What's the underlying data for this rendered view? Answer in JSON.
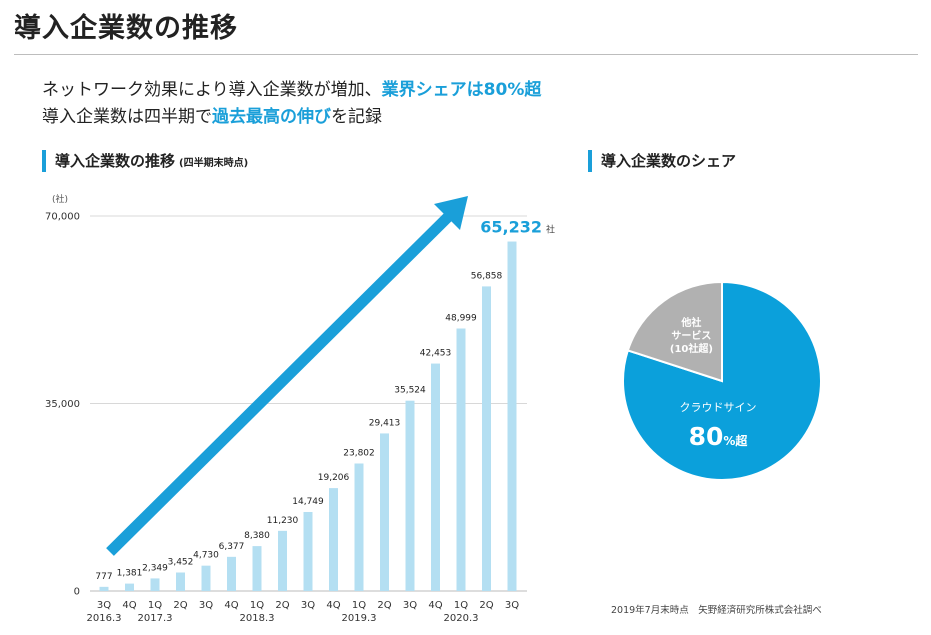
{
  "page": {
    "title": "導入企業数の推移",
    "headline_line1_prefix": "ネットワーク効果により導入企業数が増加、",
    "headline_line1_highlight": "業界シェアは80%超",
    "headline_line2_prefix": "導入企業数は四半期で",
    "headline_line2_highlight": "過去最高の伸び",
    "headline_line2_suffix": "を記録",
    "source": "2019年7月末時点　矢野経済研究所株式会社調べ"
  },
  "bar_section": {
    "title": "導入企業数の推移",
    "subtitle": "(四半期末時点)"
  },
  "pie_section": {
    "title": "導入企業数のシェア"
  },
  "colors": {
    "accent": "#1a9fd9",
    "bar": "#b4dff2",
    "pie_main": "#0ba0db",
    "pie_other": "#b1b1b1"
  },
  "chart_data": [
    {
      "type": "bar",
      "title": "導入企業数の推移",
      "subtitle": "(四半期末時点)",
      "ylabel": "(社)",
      "ylim": [
        0,
        70000
      ],
      "yticks": [
        0,
        35000,
        70000
      ],
      "ytick_labels": [
        "0",
        "35,000",
        "70,000"
      ],
      "categories": [
        "3Q",
        "4Q",
        "1Q",
        "2Q",
        "3Q",
        "4Q",
        "1Q",
        "2Q",
        "3Q",
        "4Q",
        "1Q",
        "2Q",
        "3Q",
        "4Q",
        "1Q",
        "2Q",
        "3Q"
      ],
      "year_labels": [
        {
          "index": 0,
          "label": "2016.3"
        },
        {
          "index": 2,
          "label": "2017.3"
        },
        {
          "index": 6,
          "label": "2018.3"
        },
        {
          "index": 10,
          "label": "2019.3"
        },
        {
          "index": 14,
          "label": "2020.3"
        }
      ],
      "values": [
        777,
        1381,
        2349,
        3452,
        4730,
        6377,
        8380,
        11230,
        14749,
        19206,
        23802,
        29413,
        35524,
        42453,
        48999,
        56858,
        65232
      ],
      "value_labels": [
        "777",
        "1,381",
        "2,349",
        "3,452",
        "4,730",
        "6,377",
        "8,380",
        "11,230",
        "14,749",
        "19,206",
        "23,802",
        "29,413",
        "35,524",
        "42,453",
        "48,999",
        "56,858",
        "65,232"
      ],
      "last_label_unit": "社",
      "annotation": "upward trend arrow"
    },
    {
      "type": "pie",
      "title": "導入企業数のシェア",
      "slices": [
        {
          "label": "クラウドサイン",
          "value": 80,
          "display_value": "80",
          "display_unit": "%超"
        },
        {
          "label_lines": [
            "他社",
            "サービス",
            "(10社超)"
          ],
          "value": 20
        }
      ]
    }
  ]
}
